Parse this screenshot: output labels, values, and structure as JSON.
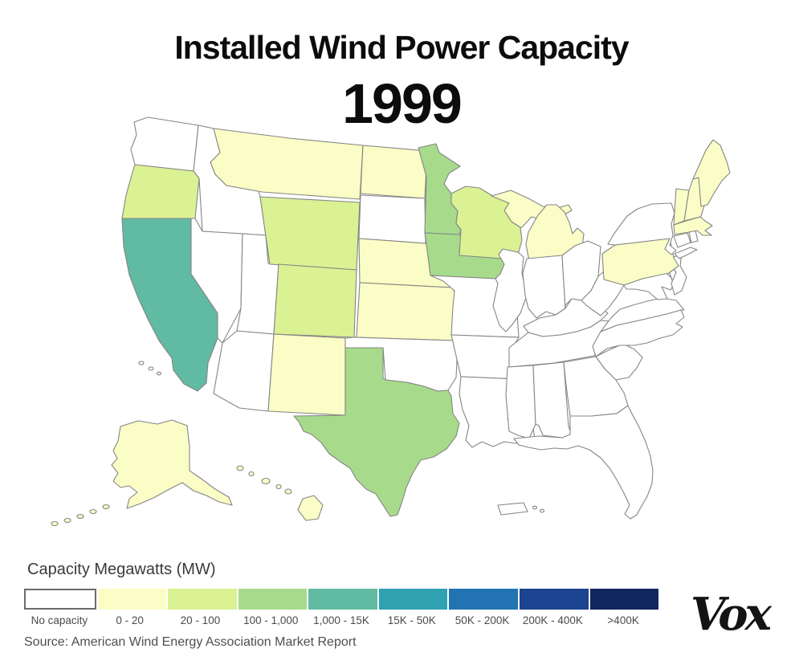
{
  "header": {
    "title": "Installed Wind Power Capacity",
    "year": "1999"
  },
  "legend": {
    "title": "Capacity Megawatts (MW)",
    "items": [
      {
        "label": "No capacity",
        "color": "#ffffff",
        "border": "#6b6b6b"
      },
      {
        "label": "0 - 20",
        "color": "#fbfdc6"
      },
      {
        "label": "20 - 100",
        "color": "#daf293"
      },
      {
        "label": "100 - 1,000",
        "color": "#a7db8b"
      },
      {
        "label": "1,000 - 15K",
        "color": "#60bba2"
      },
      {
        "label": "15K - 50K",
        "color": "#2fa1b1"
      },
      {
        "label": "50K - 200K",
        "color": "#2173b2"
      },
      {
        "label": "200K - 400K",
        "color": "#1a4390"
      },
      {
        "label": ">400K",
        "color": "#12265e"
      }
    ]
  },
  "source": {
    "text": "Source: American Wind Energy Association Market Report"
  },
  "branding": {
    "logo_text": "Vox"
  },
  "chart_data": {
    "type": "choropleth-map",
    "title": "Installed Wind Power Capacity",
    "year": "1999",
    "unit": "Capacity Megawatts (MW)",
    "categories": [
      "No capacity",
      "0 - 20",
      "20 - 100",
      "100 - 1,000",
      "1,000 - 15K",
      "15K - 50K",
      "50K - 200K",
      "200K - 400K",
      ">400K"
    ],
    "state_categories": {
      "WA": "No capacity",
      "OR": "20 - 100",
      "CA": "1,000 - 15K",
      "ID": "No capacity",
      "NV": "No capacity",
      "UT": "No capacity",
      "AZ": "No capacity",
      "MT": "0 - 20",
      "WY": "20 - 100",
      "CO": "20 - 100",
      "NM": "0 - 20",
      "ND": "0 - 20",
      "SD": "No capacity",
      "NE": "0 - 20",
      "KS": "0 - 20",
      "OK": "No capacity",
      "TX": "100 - 1,000",
      "MN": "100 - 1,000",
      "IA": "100 - 1,000",
      "MO": "No capacity",
      "AR": "No capacity",
      "LA": "No capacity",
      "WI": "20 - 100",
      "IL": "No capacity",
      "MI": "0 - 20",
      "IN": "No capacity",
      "OH": "No capacity",
      "KY": "No capacity",
      "TN": "No capacity",
      "MS": "No capacity",
      "AL": "No capacity",
      "GA": "No capacity",
      "FL": "No capacity",
      "SC": "No capacity",
      "NC": "No capacity",
      "VA": "No capacity",
      "WV": "No capacity",
      "MD": "No capacity",
      "DE": "No capacity",
      "NJ": "No capacity",
      "PA": "0 - 20",
      "NY": "No capacity",
      "CT": "No capacity",
      "RI": "No capacity",
      "MA": "0 - 20",
      "VT": "0 - 20",
      "NH": "0 - 20",
      "ME": "0 - 20",
      "AK": "0 - 20",
      "HI": "0 - 20",
      "PR": "No capacity"
    }
  }
}
